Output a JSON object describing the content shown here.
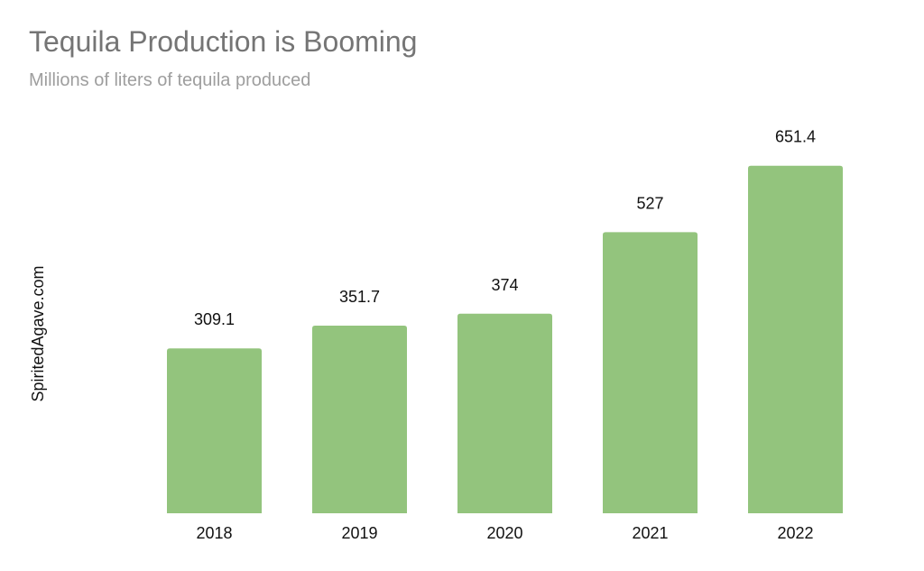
{
  "chart_data": {
    "type": "bar",
    "title": "Tequila Production is Booming",
    "subtitle": "Millions of liters of tequila produced",
    "ylabel": "SpiritedAgave.com",
    "xlabel": "",
    "categories": [
      "2018",
      "2019",
      "2020",
      "2021",
      "2022"
    ],
    "values": [
      309.1,
      351.7,
      374,
      527,
      651.4
    ],
    "data_labels": [
      "309.1",
      "351.7",
      "374",
      "527",
      "651.4"
    ],
    "ylim": [
      0,
      700
    ],
    "grid": false,
    "legend": "none",
    "bar_color": "#93c47d"
  }
}
